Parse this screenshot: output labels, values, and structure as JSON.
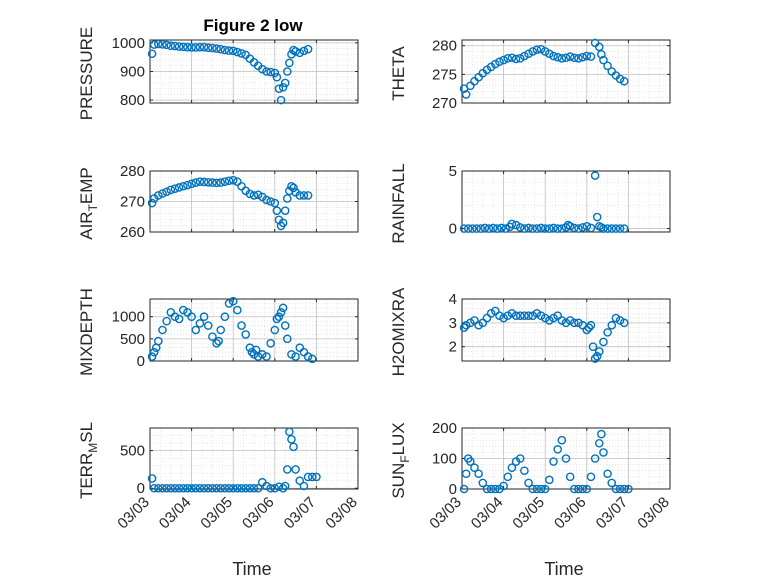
{
  "figure_title": "Figure 2 low",
  "marker_color": "#0072BD",
  "chart_data": [
    {
      "type": "scatter",
      "title": "Figure 2 low",
      "ylabel": "PRESSURE",
      "ylim": [
        790,
        1010
      ],
      "yticks": [
        800,
        900,
        1000
      ],
      "xlim": [
        "03/03",
        "03/08"
      ],
      "xticks": [
        "03/03",
        "03/04",
        "03/05",
        "03/06",
        "03/07",
        "03/08"
      ],
      "grid": true,
      "x": [
        3.05,
        3.1,
        3.2,
        3.3,
        3.4,
        3.5,
        3.6,
        3.7,
        3.8,
        3.9,
        4.0,
        4.1,
        4.2,
        4.3,
        4.4,
        4.5,
        4.6,
        4.7,
        4.8,
        4.9,
        5.0,
        5.1,
        5.2,
        5.3,
        5.4,
        5.5,
        5.6,
        5.7,
        5.8,
        5.9,
        6.0,
        6.05,
        6.1,
        6.15,
        6.2,
        6.25,
        6.3,
        6.35,
        6.4,
        6.45,
        6.5,
        6.6,
        6.7,
        6.8
      ],
      "y": [
        962,
        994,
        996,
        995,
        993,
        990,
        989,
        987,
        986,
        985,
        984,
        984,
        985,
        985,
        983,
        982,
        980,
        978,
        975,
        973,
        972,
        968,
        963,
        958,
        945,
        932,
        920,
        908,
        900,
        898,
        895,
        880,
        840,
        800,
        845,
        860,
        900,
        930,
        960,
        975,
        970,
        965,
        972,
        978
      ]
    },
    {
      "type": "scatter",
      "ylabel": "THETA",
      "ylim": [
        270,
        281
      ],
      "yticks": [
        270,
        275,
        280
      ],
      "xlim": [
        "03/03",
        "03/08"
      ],
      "xticks": [
        "03/03",
        "03/04",
        "03/05",
        "03/06",
        "03/07",
        "03/08"
      ],
      "grid": true,
      "x": [
        3.05,
        3.1,
        3.2,
        3.3,
        3.4,
        3.5,
        3.6,
        3.7,
        3.8,
        3.9,
        4.0,
        4.1,
        4.2,
        4.3,
        4.4,
        4.5,
        4.6,
        4.7,
        4.8,
        4.9,
        5.0,
        5.1,
        5.2,
        5.3,
        5.4,
        5.5,
        5.6,
        5.7,
        5.8,
        5.9,
        6.0,
        6.1,
        6.2,
        6.3,
        6.35,
        6.4,
        6.5,
        6.6,
        6.7,
        6.8,
        6.9
      ],
      "y": [
        272.5,
        271.5,
        273.0,
        273.8,
        274.5,
        275.2,
        275.8,
        276.3,
        276.8,
        277.2,
        277.5,
        277.8,
        277.9,
        277.7,
        277.8,
        278.2,
        278.6,
        279.0,
        279.3,
        279.4,
        279.0,
        278.6,
        278.2,
        278.0,
        277.8,
        277.9,
        278.1,
        277.9,
        277.8,
        278.0,
        278.2,
        278.1,
        280.5,
        279.8,
        278.5,
        277.5,
        276.5,
        275.5,
        274.8,
        274.2,
        273.8
      ]
    },
    {
      "type": "scatter",
      "ylabel": "AIR_TEMP",
      "ylim": [
        260,
        280
      ],
      "yticks": [
        260,
        270,
        280
      ],
      "xlim": [
        "03/03",
        "03/08"
      ],
      "xticks": [
        "03/03",
        "03/04",
        "03/05",
        "03/06",
        "03/07",
        "03/08"
      ],
      "grid": true,
      "x": [
        3.05,
        3.1,
        3.2,
        3.3,
        3.4,
        3.5,
        3.6,
        3.7,
        3.8,
        3.9,
        4.0,
        4.1,
        4.2,
        4.3,
        4.4,
        4.5,
        4.6,
        4.7,
        4.8,
        4.9,
        5.0,
        5.1,
        5.2,
        5.3,
        5.4,
        5.5,
        5.6,
        5.7,
        5.8,
        5.9,
        6.0,
        6.05,
        6.1,
        6.15,
        6.2,
        6.25,
        6.3,
        6.35,
        6.4,
        6.45,
        6.5,
        6.6,
        6.7,
        6.8
      ],
      "y": [
        269.5,
        271.0,
        272.0,
        272.6,
        273.2,
        273.8,
        274.2,
        274.6,
        275.0,
        275.4,
        275.8,
        276.2,
        276.5,
        276.4,
        276.3,
        276.2,
        276.1,
        276.2,
        276.5,
        276.8,
        277.0,
        276.5,
        275.0,
        273.5,
        272.5,
        272.0,
        272.2,
        271.5,
        270.5,
        270.0,
        269.5,
        267.0,
        264.0,
        262.0,
        263.0,
        267.0,
        271.0,
        273.5,
        275.0,
        274.5,
        273.0,
        272.0,
        272.0,
        272.0
      ]
    },
    {
      "type": "scatter",
      "ylabel": "RAINFALL",
      "ylim": [
        -0.3,
        5
      ],
      "yticks": [
        0,
        5
      ],
      "xlim": [
        "03/03",
        "03/08"
      ],
      "xticks": [
        "03/03",
        "03/04",
        "03/05",
        "03/06",
        "03/07",
        "03/08"
      ],
      "grid": true,
      "x": [
        3.05,
        3.15,
        3.25,
        3.35,
        3.45,
        3.55,
        3.65,
        3.75,
        3.85,
        3.95,
        4.05,
        4.15,
        4.2,
        4.3,
        4.4,
        4.5,
        4.6,
        4.7,
        4.8,
        4.9,
        5.0,
        5.1,
        5.2,
        5.3,
        5.4,
        5.5,
        5.55,
        5.6,
        5.7,
        5.8,
        5.9,
        6.0,
        6.1,
        6.2,
        6.25,
        6.3,
        6.35,
        6.4,
        6.5,
        6.6,
        6.7,
        6.8,
        6.9
      ],
      "y": [
        0.0,
        0.0,
        0.0,
        0.0,
        0.0,
        0.05,
        0.0,
        0.05,
        0.0,
        0.05,
        0.0,
        0.15,
        0.4,
        0.3,
        0.1,
        0.0,
        0.05,
        0.0,
        0.0,
        0.05,
        0.0,
        0.0,
        0.05,
        0.0,
        0.0,
        0.1,
        0.3,
        0.2,
        0.05,
        0.0,
        0.1,
        0.2,
        0.05,
        4.6,
        1.0,
        0.2,
        0.1,
        0.0,
        0.0,
        0.0,
        0.0,
        0.0,
        0.0
      ]
    },
    {
      "type": "scatter",
      "ylabel": "MIXDEPTH",
      "ylim": [
        0,
        1400
      ],
      "yticks": [
        0,
        500,
        1000
      ],
      "xlim": [
        "03/03",
        "03/08"
      ],
      "xticks": [
        "03/03",
        "03/04",
        "03/05",
        "03/06",
        "03/07",
        "03/08"
      ],
      "grid": true,
      "x": [
        3.05,
        3.1,
        3.15,
        3.2,
        3.3,
        3.4,
        3.5,
        3.6,
        3.7,
        3.8,
        3.9,
        4.0,
        4.1,
        4.2,
        4.3,
        4.4,
        4.5,
        4.6,
        4.65,
        4.7,
        4.8,
        4.9,
        5.0,
        5.1,
        5.2,
        5.3,
        5.4,
        5.45,
        5.5,
        5.55,
        5.6,
        5.7,
        5.8,
        5.9,
        6.0,
        6.05,
        6.1,
        6.15,
        6.2,
        6.25,
        6.3,
        6.4,
        6.5,
        6.6,
        6.7,
        6.8,
        6.9
      ],
      "y": [
        100,
        200,
        300,
        450,
        700,
        900,
        1100,
        1000,
        950,
        1150,
        1100,
        1000,
        700,
        850,
        1000,
        800,
        550,
        400,
        450,
        700,
        1000,
        1300,
        1350,
        1150,
        800,
        600,
        300,
        200,
        150,
        250,
        100,
        150,
        100,
        400,
        700,
        950,
        1000,
        1100,
        1200,
        800,
        500,
        150,
        100,
        300,
        200,
        100,
        50
      ]
    },
    {
      "type": "scatter",
      "ylabel": "H2OMIXRA",
      "ylim": [
        1.4,
        4
      ],
      "yticks": [
        2,
        3,
        4
      ],
      "xlim": [
        "03/03",
        "03/08"
      ],
      "xticks": [
        "03/03",
        "03/04",
        "03/05",
        "03/06",
        "03/07",
        "03/08"
      ],
      "grid": true,
      "x": [
        3.05,
        3.1,
        3.2,
        3.3,
        3.4,
        3.5,
        3.6,
        3.7,
        3.8,
        3.9,
        4.0,
        4.1,
        4.2,
        4.3,
        4.4,
        4.5,
        4.6,
        4.7,
        4.8,
        4.9,
        5.0,
        5.1,
        5.2,
        5.3,
        5.4,
        5.5,
        5.6,
        5.7,
        5.8,
        5.9,
        6.0,
        6.05,
        6.1,
        6.15,
        6.2,
        6.25,
        6.3,
        6.4,
        6.5,
        6.6,
        6.7,
        6.8,
        6.9
      ],
      "y": [
        2.8,
        2.9,
        3.0,
        3.1,
        2.9,
        3.0,
        3.2,
        3.4,
        3.5,
        3.3,
        3.2,
        3.3,
        3.4,
        3.3,
        3.3,
        3.3,
        3.3,
        3.3,
        3.4,
        3.3,
        3.2,
        3.1,
        3.2,
        3.3,
        3.1,
        3.0,
        3.1,
        3.0,
        3.0,
        2.9,
        2.7,
        2.8,
        2.9,
        2.0,
        1.5,
        1.6,
        1.8,
        2.2,
        2.6,
        2.9,
        3.2,
        3.1,
        3.0
      ]
    },
    {
      "type": "scatter",
      "ylabel": "TERR_MSL",
      "ylim": [
        -10,
        800
      ],
      "yticks": [
        0,
        500
      ],
      "xlim": [
        "03/03",
        "03/08"
      ],
      "xticks": [
        "03/03",
        "03/04",
        "03/05",
        "03/06",
        "03/07",
        "03/08"
      ],
      "grid": true,
      "x": [
        3.05,
        3.1,
        3.2,
        3.3,
        3.4,
        3.5,
        3.6,
        3.7,
        3.8,
        3.9,
        4.0,
        4.1,
        4.2,
        4.3,
        4.4,
        4.5,
        4.6,
        4.7,
        4.8,
        4.9,
        5.0,
        5.1,
        5.2,
        5.3,
        5.4,
        5.5,
        5.6,
        5.7,
        5.8,
        5.9,
        6.0,
        6.1,
        6.2,
        6.25,
        6.3,
        6.35,
        6.4,
        6.45,
        6.5,
        6.6,
        6.7,
        6.8,
        6.9,
        7.0
      ],
      "y": [
        130,
        0,
        0,
        0,
        0,
        0,
        0,
        0,
        0,
        0,
        0,
        0,
        0,
        0,
        0,
        0,
        0,
        0,
        0,
        0,
        0,
        0,
        0,
        0,
        0,
        0,
        0,
        80,
        30,
        0,
        0,
        20,
        0,
        30,
        250,
        750,
        650,
        550,
        250,
        100,
        30,
        150,
        150,
        150
      ]
    },
    {
      "type": "scatter",
      "ylabel": "SUN_FLUX",
      "ylim": [
        0,
        200
      ],
      "yticks": [
        0,
        100,
        200
      ],
      "xlim": [
        "03/03",
        "03/08"
      ],
      "xticks": [
        "03/03",
        "03/04",
        "03/05",
        "03/06",
        "03/07",
        "03/08"
      ],
      "grid": true,
      "x": [
        3.05,
        3.1,
        3.15,
        3.2,
        3.3,
        3.4,
        3.5,
        3.6,
        3.7,
        3.8,
        3.9,
        4.0,
        4.1,
        4.2,
        4.3,
        4.4,
        4.5,
        4.6,
        4.7,
        4.8,
        4.9,
        5.0,
        5.1,
        5.2,
        5.3,
        5.4,
        5.5,
        5.6,
        5.7,
        5.8,
        5.9,
        6.0,
        6.1,
        6.2,
        6.3,
        6.35,
        6.4,
        6.5,
        6.6,
        6.7,
        6.8,
        6.9,
        7.0
      ],
      "y": [
        0,
        50,
        100,
        90,
        70,
        50,
        20,
        0,
        0,
        0,
        0,
        10,
        40,
        70,
        90,
        100,
        60,
        20,
        0,
        0,
        0,
        0,
        30,
        90,
        130,
        160,
        100,
        40,
        0,
        0,
        0,
        0,
        40,
        100,
        150,
        180,
        120,
        50,
        20,
        0,
        0,
        0,
        0
      ]
    }
  ],
  "labels": {
    "xlabel": "Time",
    "y": [
      {
        "main": "PRESSURE",
        "sub": "",
        "tail": ""
      },
      {
        "main": "THETA",
        "sub": "",
        "tail": ""
      },
      {
        "main": "AIR",
        "sub": "T",
        "tail": "EMP"
      },
      {
        "main": "RAINFALL",
        "sub": "",
        "tail": ""
      },
      {
        "main": "MIXDEPTH",
        "sub": "",
        "tail": ""
      },
      {
        "main": "H2OMIXRA",
        "sub": "",
        "tail": ""
      },
      {
        "main": "TERR",
        "sub": "M",
        "tail": "SL"
      },
      {
        "main": "SUN",
        "sub": "F",
        "tail": "LUX"
      }
    ]
  }
}
